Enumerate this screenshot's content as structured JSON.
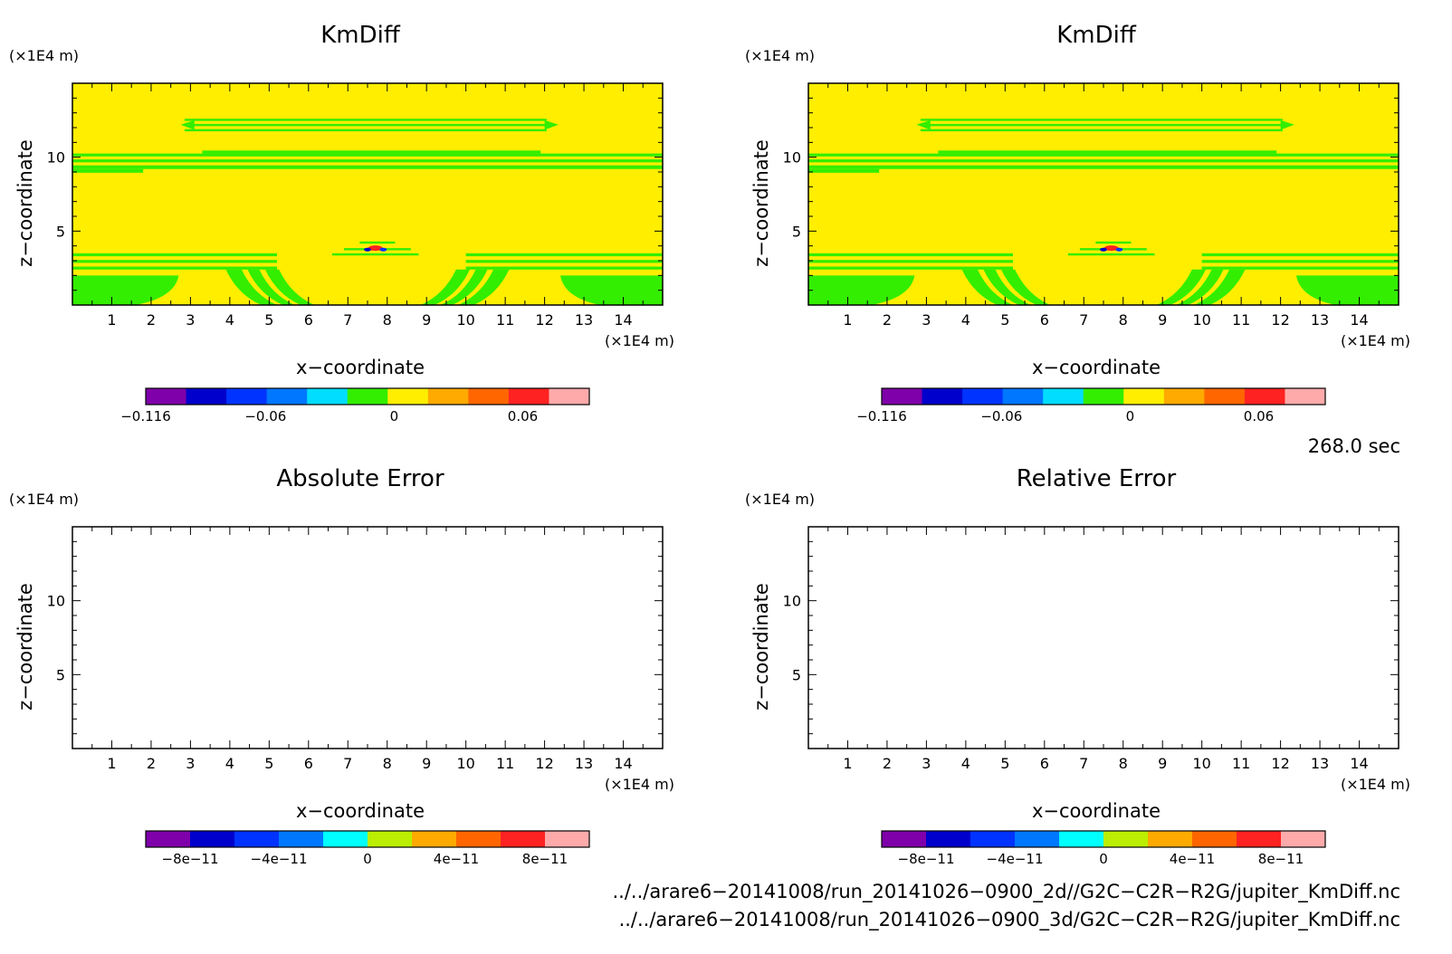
{
  "chart_data": [
    {
      "type": "heatmap",
      "title": "KmDiff",
      "xlabel": "x−coordinate",
      "ylabel": "z−coordinate",
      "x_unit": "(×1E4 m)",
      "y_unit": "(×1E4 m)",
      "xlim": [
        0,
        15
      ],
      "ylim": [
        0,
        15
      ],
      "x_ticks": [
        "1",
        "2",
        "3",
        "4",
        "5",
        "6",
        "7",
        "8",
        "9",
        "10",
        "11",
        "12",
        "13",
        "14"
      ],
      "y_ticks": [
        "5",
        "10"
      ],
      "fill": "field",
      "field_description_colors": {
        "background": "#ffee00",
        "bands": "#33ee00"
      },
      "colorbar": {
        "colors": [
          "#7f00aa",
          "#0000cc",
          "#0033ff",
          "#0077ff",
          "#00ddff",
          "#33ee00",
          "#ffee00",
          "#ffaa00",
          "#ff6600",
          "#ff2222",
          "#ffaaaa"
        ],
        "tick_labels": [
          "−0.116",
          "−0.06",
          "0",
          "0.06"
        ]
      }
    },
    {
      "type": "heatmap",
      "title": "KmDiff",
      "xlabel": "x−coordinate",
      "ylabel": "z−coordinate",
      "x_unit": "(×1E4 m)",
      "y_unit": "(×1E4 m)",
      "xlim": [
        0,
        15
      ],
      "ylim": [
        0,
        15
      ],
      "x_ticks": [
        "1",
        "2",
        "3",
        "4",
        "5",
        "6",
        "7",
        "8",
        "9",
        "10",
        "11",
        "12",
        "13",
        "14"
      ],
      "y_ticks": [
        "5",
        "10"
      ],
      "fill": "field",
      "colorbar": {
        "colors": [
          "#7f00aa",
          "#0000cc",
          "#0033ff",
          "#0077ff",
          "#00ddff",
          "#33ee00",
          "#ffee00",
          "#ffaa00",
          "#ff6600",
          "#ff2222",
          "#ffaaaa"
        ],
        "tick_labels": [
          "−0.116",
          "−0.06",
          "0",
          "0.06"
        ]
      }
    },
    {
      "type": "heatmap",
      "title": "Absolute Error",
      "xlabel": "x−coordinate",
      "ylabel": "z−coordinate",
      "x_unit": "(×1E4 m)",
      "y_unit": "(×1E4 m)",
      "xlim": [
        0,
        15
      ],
      "ylim": [
        0,
        15
      ],
      "x_ticks": [
        "1",
        "2",
        "3",
        "4",
        "5",
        "6",
        "7",
        "8",
        "9",
        "10",
        "11",
        "12",
        "13",
        "14"
      ],
      "y_ticks": [
        "5",
        "10"
      ],
      "fill": "empty",
      "colorbar": {
        "colors": [
          "#7f00aa",
          "#0000cc",
          "#0033ff",
          "#0077ff",
          "#00ffff",
          "#bbee00",
          "#ffaa00",
          "#ff6600",
          "#ff2222",
          "#ffaaaa"
        ],
        "tick_labels": [
          "−8e−11",
          "−4e−11",
          "0",
          "4e−11",
          "8e−11"
        ]
      }
    },
    {
      "type": "heatmap",
      "title": "Relative Error",
      "xlabel": "x−coordinate",
      "ylabel": "z−coordinate",
      "x_unit": "(×1E4 m)",
      "y_unit": "(×1E4 m)",
      "xlim": [
        0,
        15
      ],
      "ylim": [
        0,
        15
      ],
      "x_ticks": [
        "1",
        "2",
        "3",
        "4",
        "5",
        "6",
        "7",
        "8",
        "9",
        "10",
        "11",
        "12",
        "13",
        "14"
      ],
      "y_ticks": [
        "5",
        "10"
      ],
      "fill": "empty",
      "colorbar": {
        "colors": [
          "#7f00aa",
          "#0000cc",
          "#0033ff",
          "#0077ff",
          "#00ffff",
          "#bbee00",
          "#ffaa00",
          "#ff6600",
          "#ff2222",
          "#ffaaaa"
        ],
        "tick_labels": [
          "−8e−11",
          "−4e−11",
          "0",
          "4e−11",
          "8e−11"
        ]
      }
    }
  ],
  "time_label": "268.0 sec",
  "file_paths": [
    "../../arare6−20141008/run_20141026−0900_2d//G2C−C2R−R2G/jupiter_KmDiff.nc",
    "../../arare6−20141008/run_20141026−0900_3d/G2C−C2R−R2G/jupiter_KmDiff.nc"
  ]
}
